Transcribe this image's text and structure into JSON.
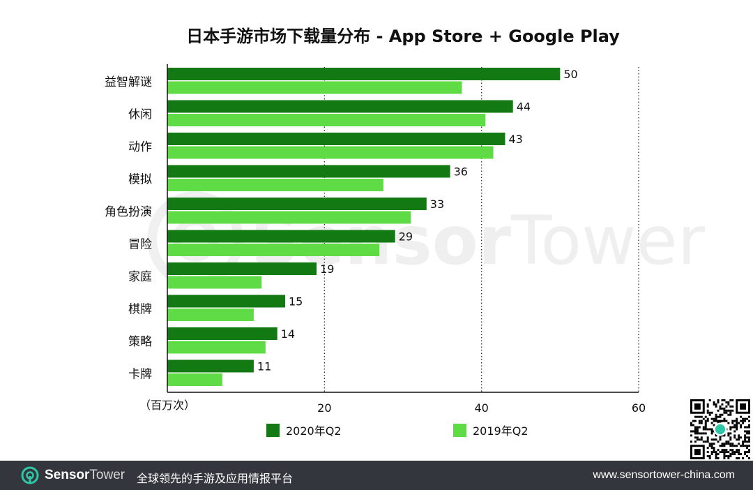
{
  "chart_data": {
    "type": "bar",
    "orientation": "horizontal",
    "title": "日本手游市场下载量分布 - App Store + Google Play",
    "unit_label": "（百万次）",
    "categories": [
      "益智解谜",
      "休闲",
      "动作",
      "模拟",
      "角色扮演",
      "冒险",
      "家庭",
      "棋牌",
      "策略",
      "卡牌"
    ],
    "series": [
      {
        "name": "2020年Q2",
        "values": [
          50,
          44,
          43,
          36,
          33,
          29,
          19,
          15,
          14,
          11
        ],
        "color": "#137a13",
        "show_labels": true
      },
      {
        "name": "2019年Q2",
        "values": [
          37.5,
          40.5,
          41.5,
          27.5,
          31,
          27,
          12,
          11,
          12.5,
          7
        ],
        "color": "#5fdc45",
        "show_labels": false
      }
    ],
    "xlim": [
      0,
      60
    ],
    "xticks": [
      20,
      40,
      60
    ],
    "gridlines": "vertical dotted",
    "legend_position": "bottom"
  },
  "watermark": {
    "brand_bold": "Sensor",
    "brand_light": "Tower"
  },
  "footer": {
    "brand_bold": "Sensor",
    "brand_light": "Tower",
    "slogan": "全球领先的手游及应用情报平台",
    "url": "www.sensortower-china.com"
  },
  "qr_icon": "qr-code-icon",
  "logo_icon": "sensortower-logo-icon"
}
